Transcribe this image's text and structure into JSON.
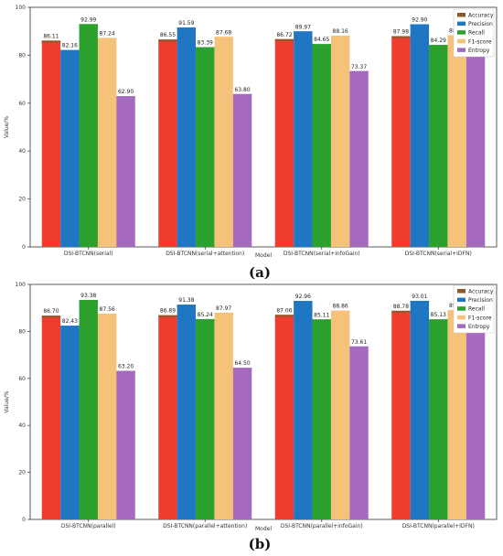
{
  "chart_data": [
    {
      "type": "bar",
      "panel_label": "(a)",
      "xlabel": "Model",
      "ylabel": "Value/%",
      "ylim": [
        0,
        100
      ],
      "yticks": [
        0,
        20,
        40,
        60,
        80,
        100
      ],
      "grid": false,
      "legend": "top-right",
      "categories": [
        "DSI-BTCNN(serial)",
        "DSI-BTCNN(serial+attention)",
        "DSI-BTCNN(serial+infoGain)",
        "DSI-BTCNN(serial+IDFN)"
      ],
      "series": [
        {
          "name": "Accuracy",
          "color": "#8B5A2B",
          "values": [
            86.11,
            86.55,
            86.72,
            87.98
          ]
        },
        {
          "name": "Precision",
          "color": "#1f77c4",
          "values": [
            82.16,
            91.59,
            89.97,
            92.9
          ]
        },
        {
          "name": "Recall",
          "color": "#2ca02c",
          "values": [
            92.99,
            83.39,
            84.65,
            84.29
          ]
        },
        {
          "name": "F1-score",
          "color": "#f5c27a",
          "values": [
            87.24,
            87.68,
            88.16,
            88.38
          ]
        },
        {
          "name": "Entropy",
          "color": "#a569bd",
          "values": [
            62.9,
            63.8,
            73.37,
            79.82
          ]
        }
      ]
    },
    {
      "type": "bar",
      "panel_label": "(b)",
      "xlabel": "Model",
      "ylabel": "Value/%",
      "ylim": [
        0,
        100
      ],
      "yticks": [
        0,
        20,
        40,
        60,
        80,
        100
      ],
      "grid": false,
      "legend": "top-right",
      "categories": [
        "DSI-BTCNN(parallel)",
        "DSI-BTCNN(parallel+attention)",
        "DSI-BTCNN(parallel+infoGain)",
        "DSI-BTCNN(parallel+IDFN)"
      ],
      "series": [
        {
          "name": "Accuracy",
          "color": "#8B5A2B",
          "values": [
            86.7,
            86.89,
            87.06,
            88.78
          ]
        },
        {
          "name": "Precision",
          "color": "#1f77c4",
          "values": [
            82.43,
            91.38,
            92.96,
            93.01
          ]
        },
        {
          "name": "Recall",
          "color": "#2ca02c",
          "values": [
            93.38,
            85.24,
            85.11,
            85.13
          ]
        },
        {
          "name": "F1-score",
          "color": "#f5c27a",
          "values": [
            87.56,
            87.97,
            88.86,
            89.07
          ]
        },
        {
          "name": "Entropy",
          "color": "#a569bd",
          "values": [
            63.2,
            64.5,
            73.61,
            80.73
          ]
        }
      ]
    }
  ],
  "style": {
    "accuracy_bar_color": "#f03c2e",
    "axis_color": "#333333"
  }
}
